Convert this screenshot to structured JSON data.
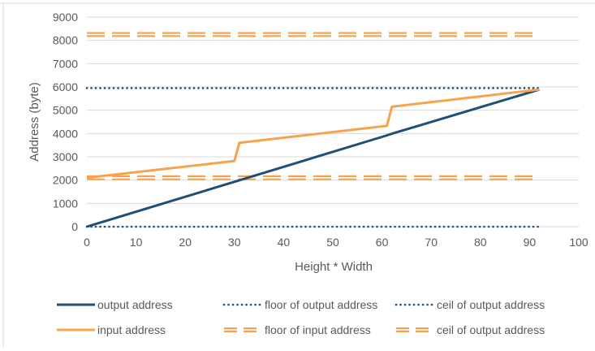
{
  "chart_data": {
    "type": "line",
    "xlabel": "Height * Width",
    "ylabel": "Address (byte)",
    "xlim": [
      0,
      100
    ],
    "ylim": [
      0,
      9000
    ],
    "x_ticks": [
      0,
      10,
      20,
      30,
      40,
      50,
      60,
      70,
      80,
      90,
      100
    ],
    "y_ticks": [
      0,
      1000,
      2000,
      3000,
      4000,
      5000,
      6000,
      7000,
      8000,
      9000
    ],
    "grid": "horizontal",
    "legend_position": "bottom",
    "colors": {
      "dark_blue": "#1f4e79",
      "orange": "#f4a44d",
      "light_orange": "#f8cbad",
      "grid": "#d9d9d9"
    },
    "series": [
      {
        "name": "output address",
        "style": "solid",
        "color": "#1f4e79",
        "x": [
          0,
          61,
          62,
          92
        ],
        "y": [
          0,
          3920,
          3990,
          5890
        ]
      },
      {
        "name": "floor of output address",
        "style": "dotted",
        "color": "#1f4e79",
        "x": [
          0,
          92
        ],
        "y": [
          0,
          0
        ]
      },
      {
        "name": "ceil of output address",
        "style": "dotted",
        "color": "#1f4e79",
        "x": [
          0,
          92
        ],
        "y": [
          5950,
          5950
        ]
      },
      {
        "name": "input address",
        "style": "solid",
        "color": "#f4a44d",
        "x": [
          0,
          30,
          31,
          61,
          62,
          92
        ],
        "y": [
          2100,
          2820,
          3600,
          4330,
          5150,
          5890
        ]
      },
      {
        "name": "floor of input address",
        "style": "double-dashed",
        "color": "#f4a44d",
        "x": [
          0,
          92
        ],
        "y": [
          2100,
          2100
        ]
      },
      {
        "name": "ceil of output address",
        "style": "double-dashed",
        "color": "#f4a44d",
        "x": [
          0,
          92
        ],
        "y": [
          8250,
          8250
        ]
      }
    ]
  }
}
